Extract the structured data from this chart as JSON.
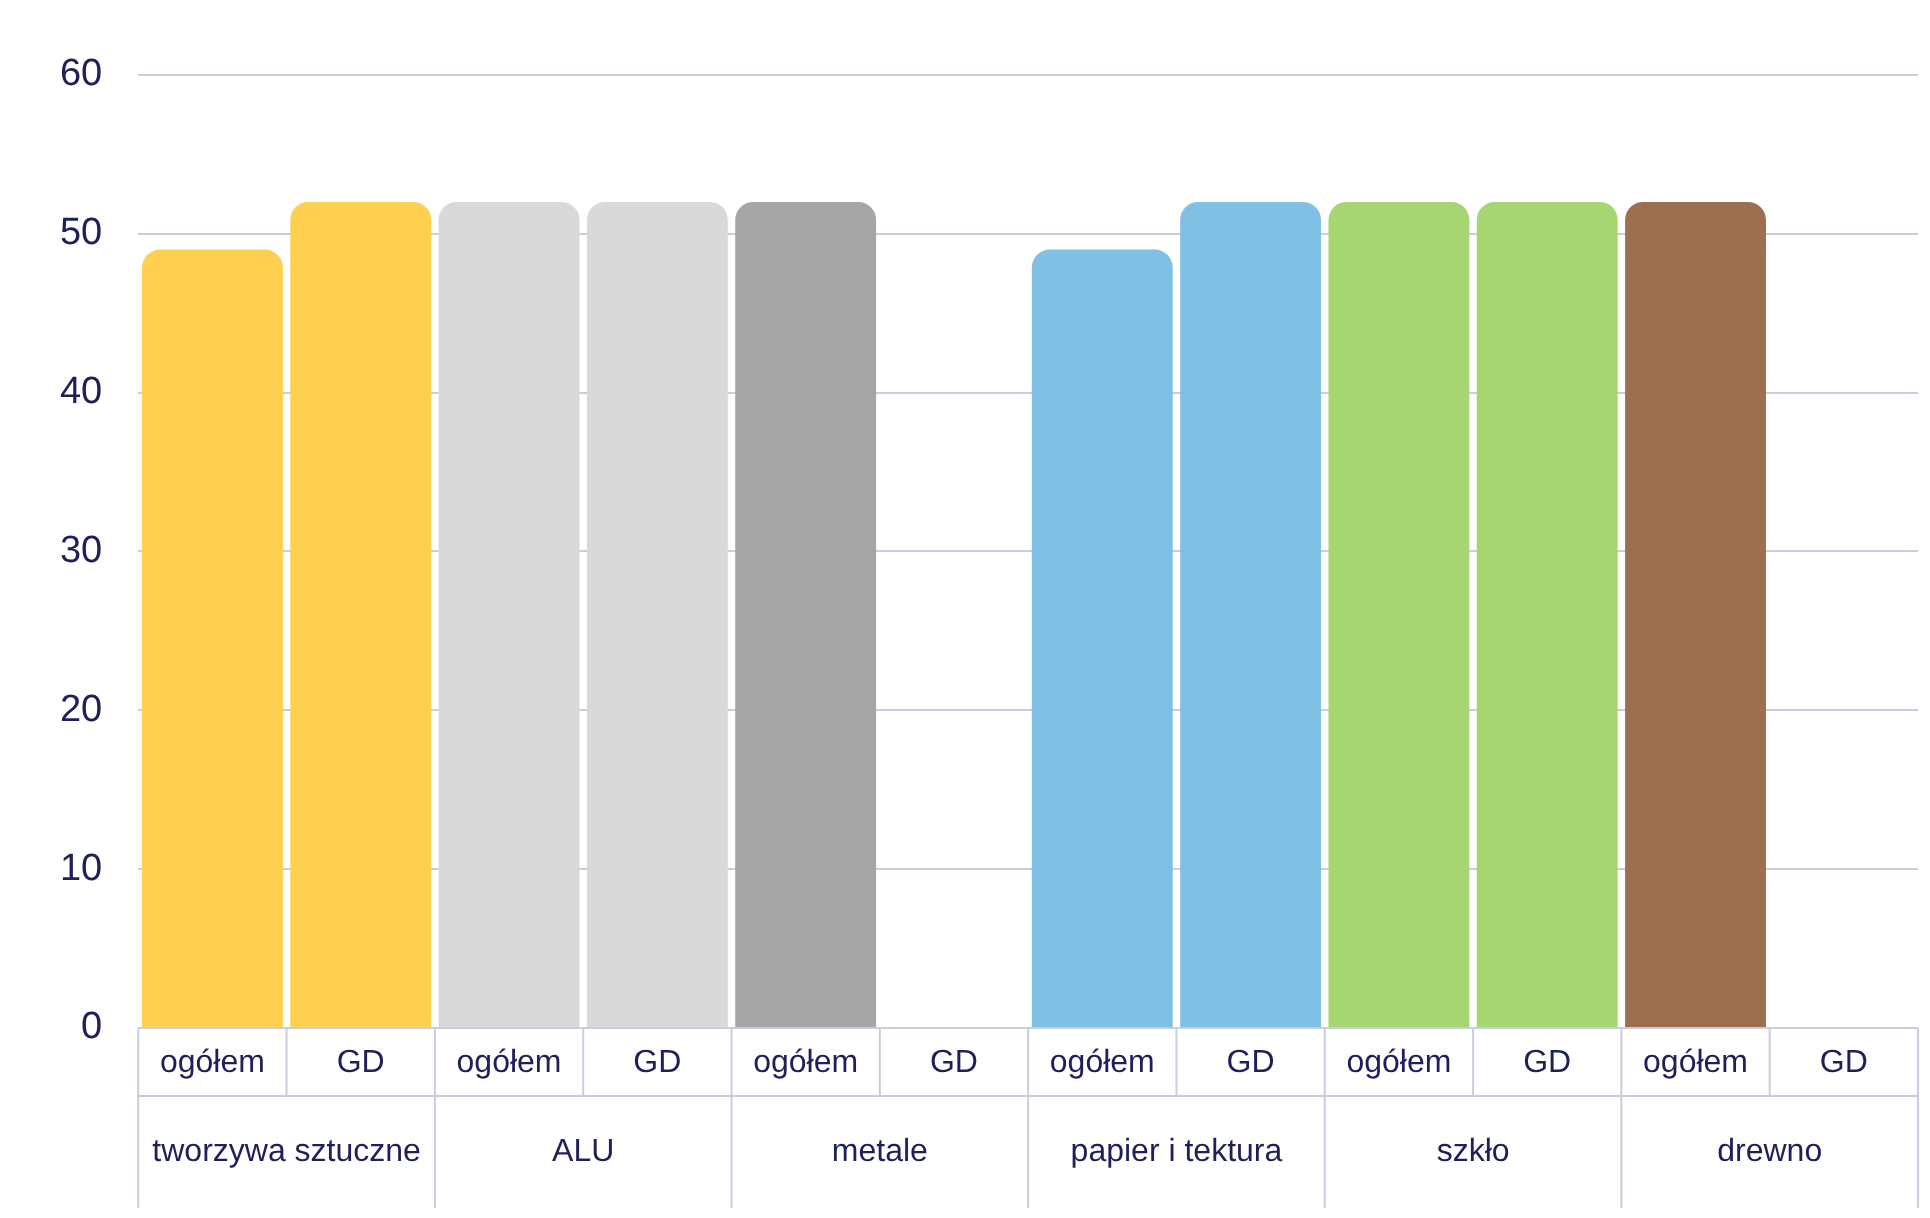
{
  "chart_data": {
    "type": "bar",
    "categories": [
      "ogółem",
      "GD",
      "ogółem",
      "GD",
      "ogółem",
      "GD",
      "ogółem",
      "GD",
      "ogółem",
      "GD",
      "ogółem",
      "GD"
    ],
    "values": [
      49,
      52,
      52,
      52,
      52,
      null,
      49,
      52,
      52,
      52,
      52,
      null
    ],
    "colors": [
      "#ffd04f",
      "#ffd04f",
      "#d9d9d9",
      "#d9d9d9",
      "#a6a6a6",
      null,
      "#7fc0e4",
      "#7fc0e4",
      "#a6d672",
      "#a6d672",
      "#9e6e50",
      null
    ],
    "annotations": [
      "tworzywa sztuczne",
      "ALU",
      "metale",
      "papier i tektura",
      "szkło",
      "drewno"
    ],
    "ylim": [
      0,
      60
    ],
    "yticks": [
      0,
      10,
      20,
      30,
      40,
      50,
      60
    ],
    "grid": "y",
    "legend": false
  }
}
